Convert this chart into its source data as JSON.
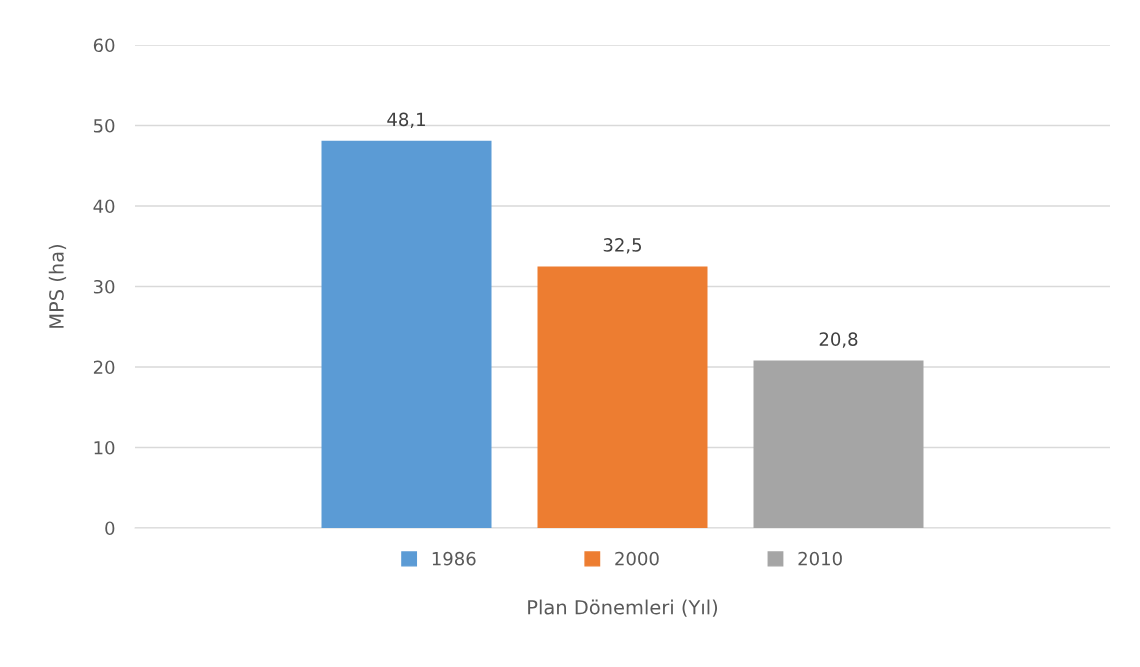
{
  "chart_data": {
    "type": "bar",
    "xlabel": "Plan Dönemleri (Yıl)",
    "ylabel": "MPS (ha)",
    "categories": [
      null
    ],
    "series": [
      {
        "name": "1986",
        "color": "#5b9bd5",
        "values": [
          48.1
        ],
        "value_labels": [
          "48,1"
        ]
      },
      {
        "name": "2000",
        "color": "#ed7d31",
        "values": [
          32.5
        ],
        "value_labels": [
          "32,5"
        ]
      },
      {
        "name": "2010",
        "color": "#a5a5a5",
        "values": [
          20.8
        ],
        "value_labels": [
          "20,8"
        ]
      }
    ],
    "ylim": [
      0,
      60
    ],
    "yticks": [
      0,
      10,
      20,
      30,
      40,
      50,
      60
    ],
    "grid": "y",
    "legend": "bottom"
  }
}
